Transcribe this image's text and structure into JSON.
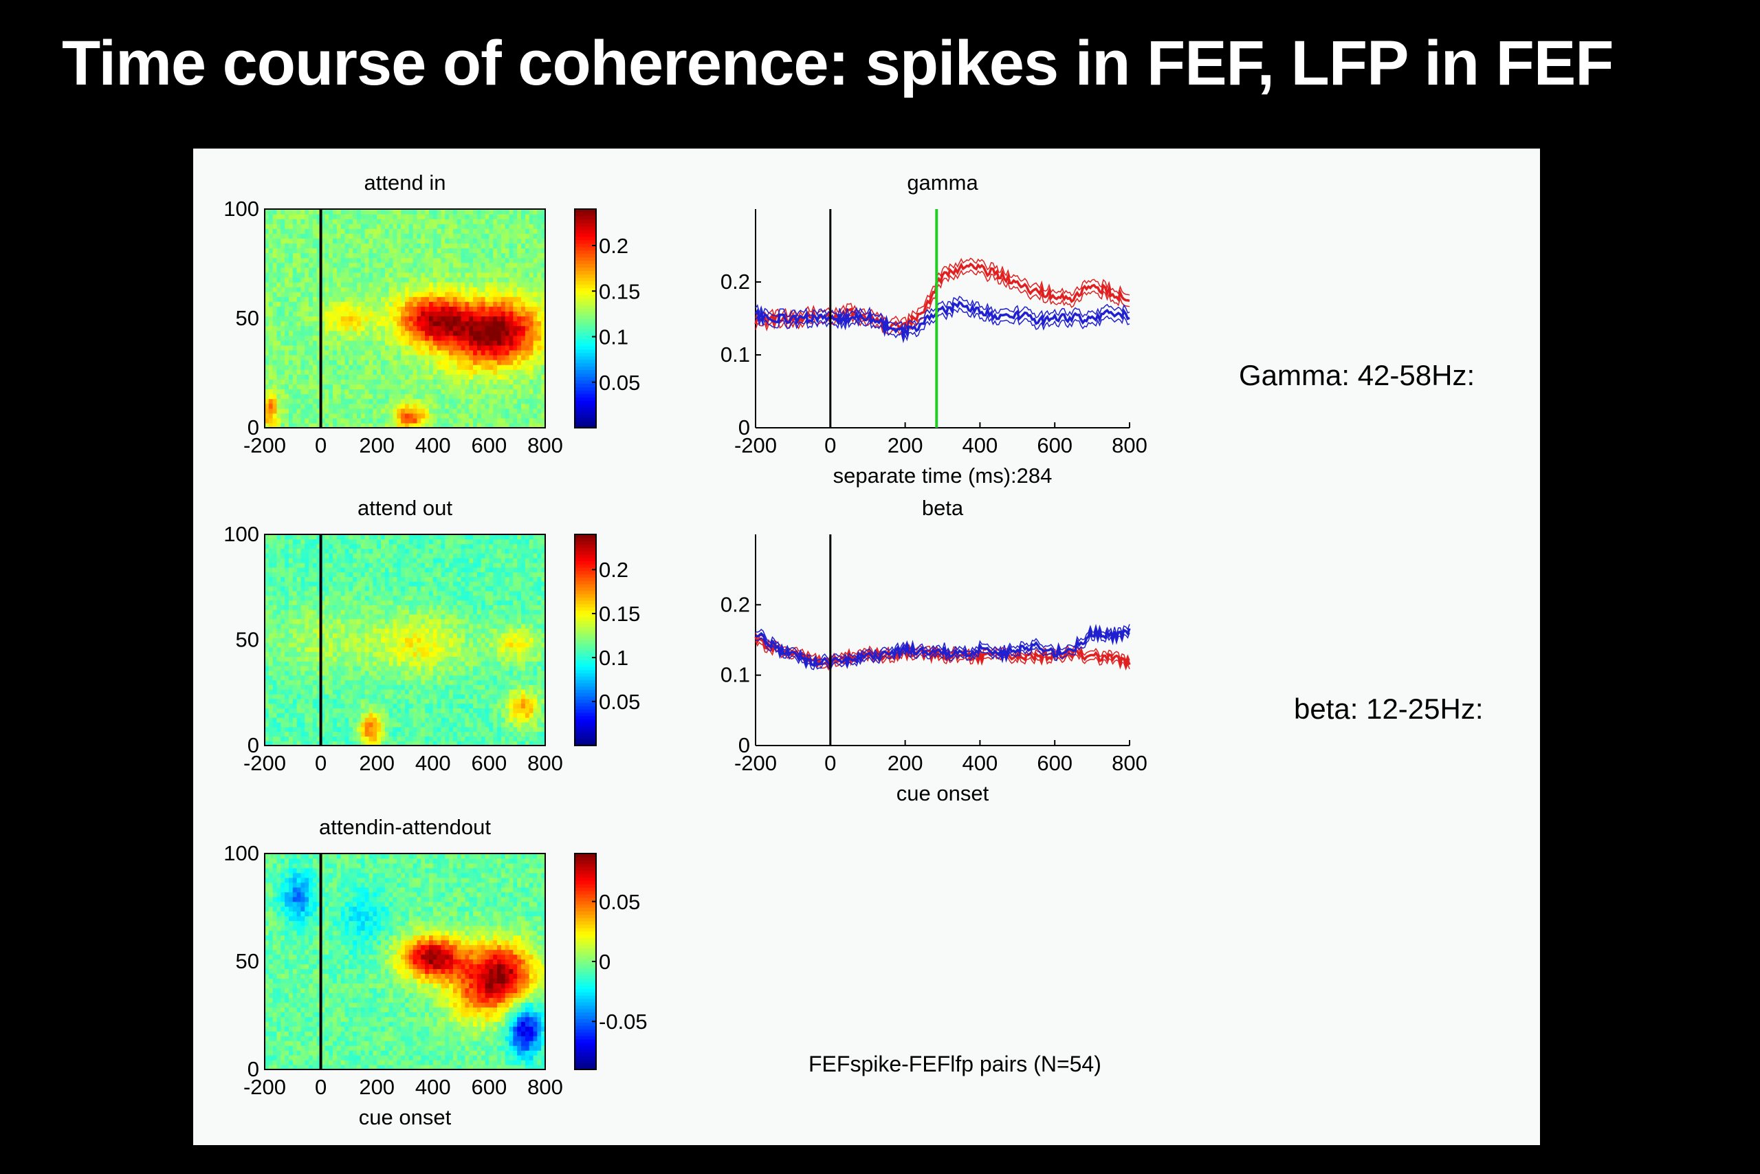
{
  "slide": {
    "title": "Time course of coherence: spikes in FEF, LFP in FEF",
    "gamma_label": "Gamma: 42-58Hz:",
    "beta_label": "beta: 12-25Hz:",
    "footer_note": "FEFspike-FEFlfp pairs (N=54)"
  },
  "colors": {
    "attend_in": "#e02020",
    "attend_out": "#2020d0",
    "separate_line": "#22cc22",
    "cue_line": "#000000"
  },
  "chart_data": [
    {
      "type": "heatmap",
      "title": "attend in",
      "xlabel": "",
      "ylabel": "",
      "xlim": [
        -200,
        800
      ],
      "ylim": [
        0,
        100
      ],
      "xticks": [
        "-200",
        "0",
        "200",
        "400",
        "600",
        "800"
      ],
      "yticks": [
        "0",
        "50",
        "100"
      ],
      "colorbar": {
        "range": [
          0,
          0.24
        ],
        "ticks": [
          "0.2",
          "0.15",
          "0.1",
          "0.05"
        ],
        "tick_values": [
          0.2,
          0.15,
          0.1,
          0.05
        ]
      },
      "vline_x": 0,
      "baseline": 0.12,
      "blobs": [
        {
          "t": 400,
          "f": 50,
          "st": 90,
          "sf": 8,
          "v": 0.1
        },
        {
          "t": 650,
          "f": 45,
          "st": 100,
          "sf": 10,
          "v": 0.09
        },
        {
          "t": 550,
          "f": 40,
          "st": 110,
          "sf": 10,
          "v": 0.05
        },
        {
          "t": 100,
          "f": 50,
          "st": 60,
          "sf": 5,
          "v": 0.04
        },
        {
          "t": 320,
          "f": 5,
          "st": 40,
          "sf": 4,
          "v": 0.07
        },
        {
          "t": -180,
          "f": 8,
          "st": 20,
          "sf": 6,
          "v": 0.06
        }
      ]
    },
    {
      "type": "heatmap",
      "title": "attend out",
      "xlabel": "",
      "ylabel": "",
      "xlim": [
        -200,
        800
      ],
      "ylim": [
        0,
        100
      ],
      "xticks": [
        "-200",
        "0",
        "200",
        "400",
        "600",
        "800"
      ],
      "yticks": [
        "0",
        "50",
        "100"
      ],
      "colorbar": {
        "range": [
          0,
          0.24
        ],
        "ticks": [
          "0.2",
          "0.15",
          "0.1",
          "0.05"
        ],
        "tick_values": [
          0.2,
          0.15,
          0.1,
          0.05
        ]
      },
      "vline_x": 0,
      "baseline": 0.11,
      "blobs": [
        {
          "t": 350,
          "f": 48,
          "st": 120,
          "sf": 10,
          "v": 0.04
        },
        {
          "t": 180,
          "f": 8,
          "st": 30,
          "sf": 6,
          "v": 0.07
        },
        {
          "t": 720,
          "f": 18,
          "st": 40,
          "sf": 6,
          "v": 0.06
        },
        {
          "t": 700,
          "f": 48,
          "st": 60,
          "sf": 6,
          "v": 0.04
        },
        {
          "t": 0,
          "f": 50,
          "st": 120,
          "sf": 12,
          "v": 0.02
        }
      ]
    },
    {
      "type": "heatmap",
      "title": "attendin-attendout",
      "xlabel": "cue onset",
      "ylabel": "",
      "xlim": [
        -200,
        800
      ],
      "ylim": [
        0,
        100
      ],
      "xticks": [
        "-200",
        "0",
        "200",
        "400",
        "600",
        "800"
      ],
      "yticks": [
        "0",
        "50",
        "100"
      ],
      "colorbar": {
        "range": [
          -0.09,
          0.09
        ],
        "ticks": [
          "0.05",
          "0",
          "-0.05"
        ],
        "tick_values": [
          0.05,
          0,
          -0.05
        ]
      },
      "vline_x": 0,
      "baseline": -0.005,
      "blobs": [
        {
          "t": 400,
          "f": 52,
          "st": 80,
          "sf": 7,
          "v": 0.09
        },
        {
          "t": 650,
          "f": 45,
          "st": 80,
          "sf": 10,
          "v": 0.08
        },
        {
          "t": 550,
          "f": 35,
          "st": 80,
          "sf": 10,
          "v": 0.04
        },
        {
          "t": 730,
          "f": 18,
          "st": 40,
          "sf": 8,
          "v": -0.07
        },
        {
          "t": -80,
          "f": 80,
          "st": 40,
          "sf": 8,
          "v": -0.04
        },
        {
          "t": 150,
          "f": 70,
          "st": 60,
          "sf": 10,
          "v": -0.02
        }
      ]
    },
    {
      "type": "line",
      "title": "gamma",
      "xlabel": "separate time (ms):284",
      "ylabel": "",
      "xlim": [
        -200,
        800
      ],
      "ylim": [
        0,
        0.3
      ],
      "xticks": [
        "-200",
        "0",
        "200",
        "400",
        "600",
        "800"
      ],
      "yticks": [
        "0",
        "0.1",
        "0.2"
      ],
      "vline_x": 0,
      "separate_x": 284,
      "x": [
        -200,
        -150,
        -100,
        -50,
        0,
        50,
        100,
        150,
        200,
        250,
        284,
        300,
        350,
        400,
        450,
        500,
        550,
        600,
        650,
        700,
        750,
        800
      ],
      "series": [
        {
          "color": "attend_in",
          "spread": 0.008,
          "values": [
            0.145,
            0.15,
            0.148,
            0.155,
            0.152,
            0.158,
            0.15,
            0.14,
            0.138,
            0.16,
            0.195,
            0.208,
            0.22,
            0.218,
            0.21,
            0.195,
            0.188,
            0.18,
            0.178,
            0.195,
            0.185,
            0.175
          ]
        },
        {
          "color": "attend_out",
          "spread": 0.008,
          "values": [
            0.155,
            0.15,
            0.148,
            0.15,
            0.15,
            0.15,
            0.152,
            0.14,
            0.13,
            0.145,
            0.155,
            0.16,
            0.168,
            0.16,
            0.15,
            0.155,
            0.148,
            0.15,
            0.152,
            0.148,
            0.158,
            0.155
          ]
        }
      ]
    },
    {
      "type": "line",
      "title": "beta",
      "xlabel": "cue onset",
      "ylabel": "",
      "xlim": [
        -200,
        800
      ],
      "ylim": [
        0,
        0.3
      ],
      "xticks": [
        "-200",
        "0",
        "200",
        "400",
        "600",
        "800"
      ],
      "yticks": [
        "0",
        "0.1",
        "0.2"
      ],
      "vline_x": 0,
      "x": [
        -200,
        -150,
        -100,
        -50,
        0,
        50,
        100,
        150,
        200,
        250,
        300,
        350,
        400,
        450,
        500,
        550,
        600,
        650,
        700,
        750,
        800
      ],
      "series": [
        {
          "color": "attend_in",
          "spread": 0.006,
          "values": [
            0.15,
            0.138,
            0.13,
            0.125,
            0.118,
            0.125,
            0.13,
            0.128,
            0.132,
            0.13,
            0.128,
            0.13,
            0.125,
            0.13,
            0.128,
            0.125,
            0.128,
            0.13,
            0.126,
            0.124,
            0.118
          ]
        },
        {
          "color": "attend_out",
          "spread": 0.006,
          "values": [
            0.16,
            0.14,
            0.128,
            0.12,
            0.118,
            0.12,
            0.125,
            0.13,
            0.138,
            0.132,
            0.135,
            0.128,
            0.138,
            0.13,
            0.135,
            0.14,
            0.132,
            0.138,
            0.16,
            0.155,
            0.162
          ]
        }
      ]
    }
  ]
}
